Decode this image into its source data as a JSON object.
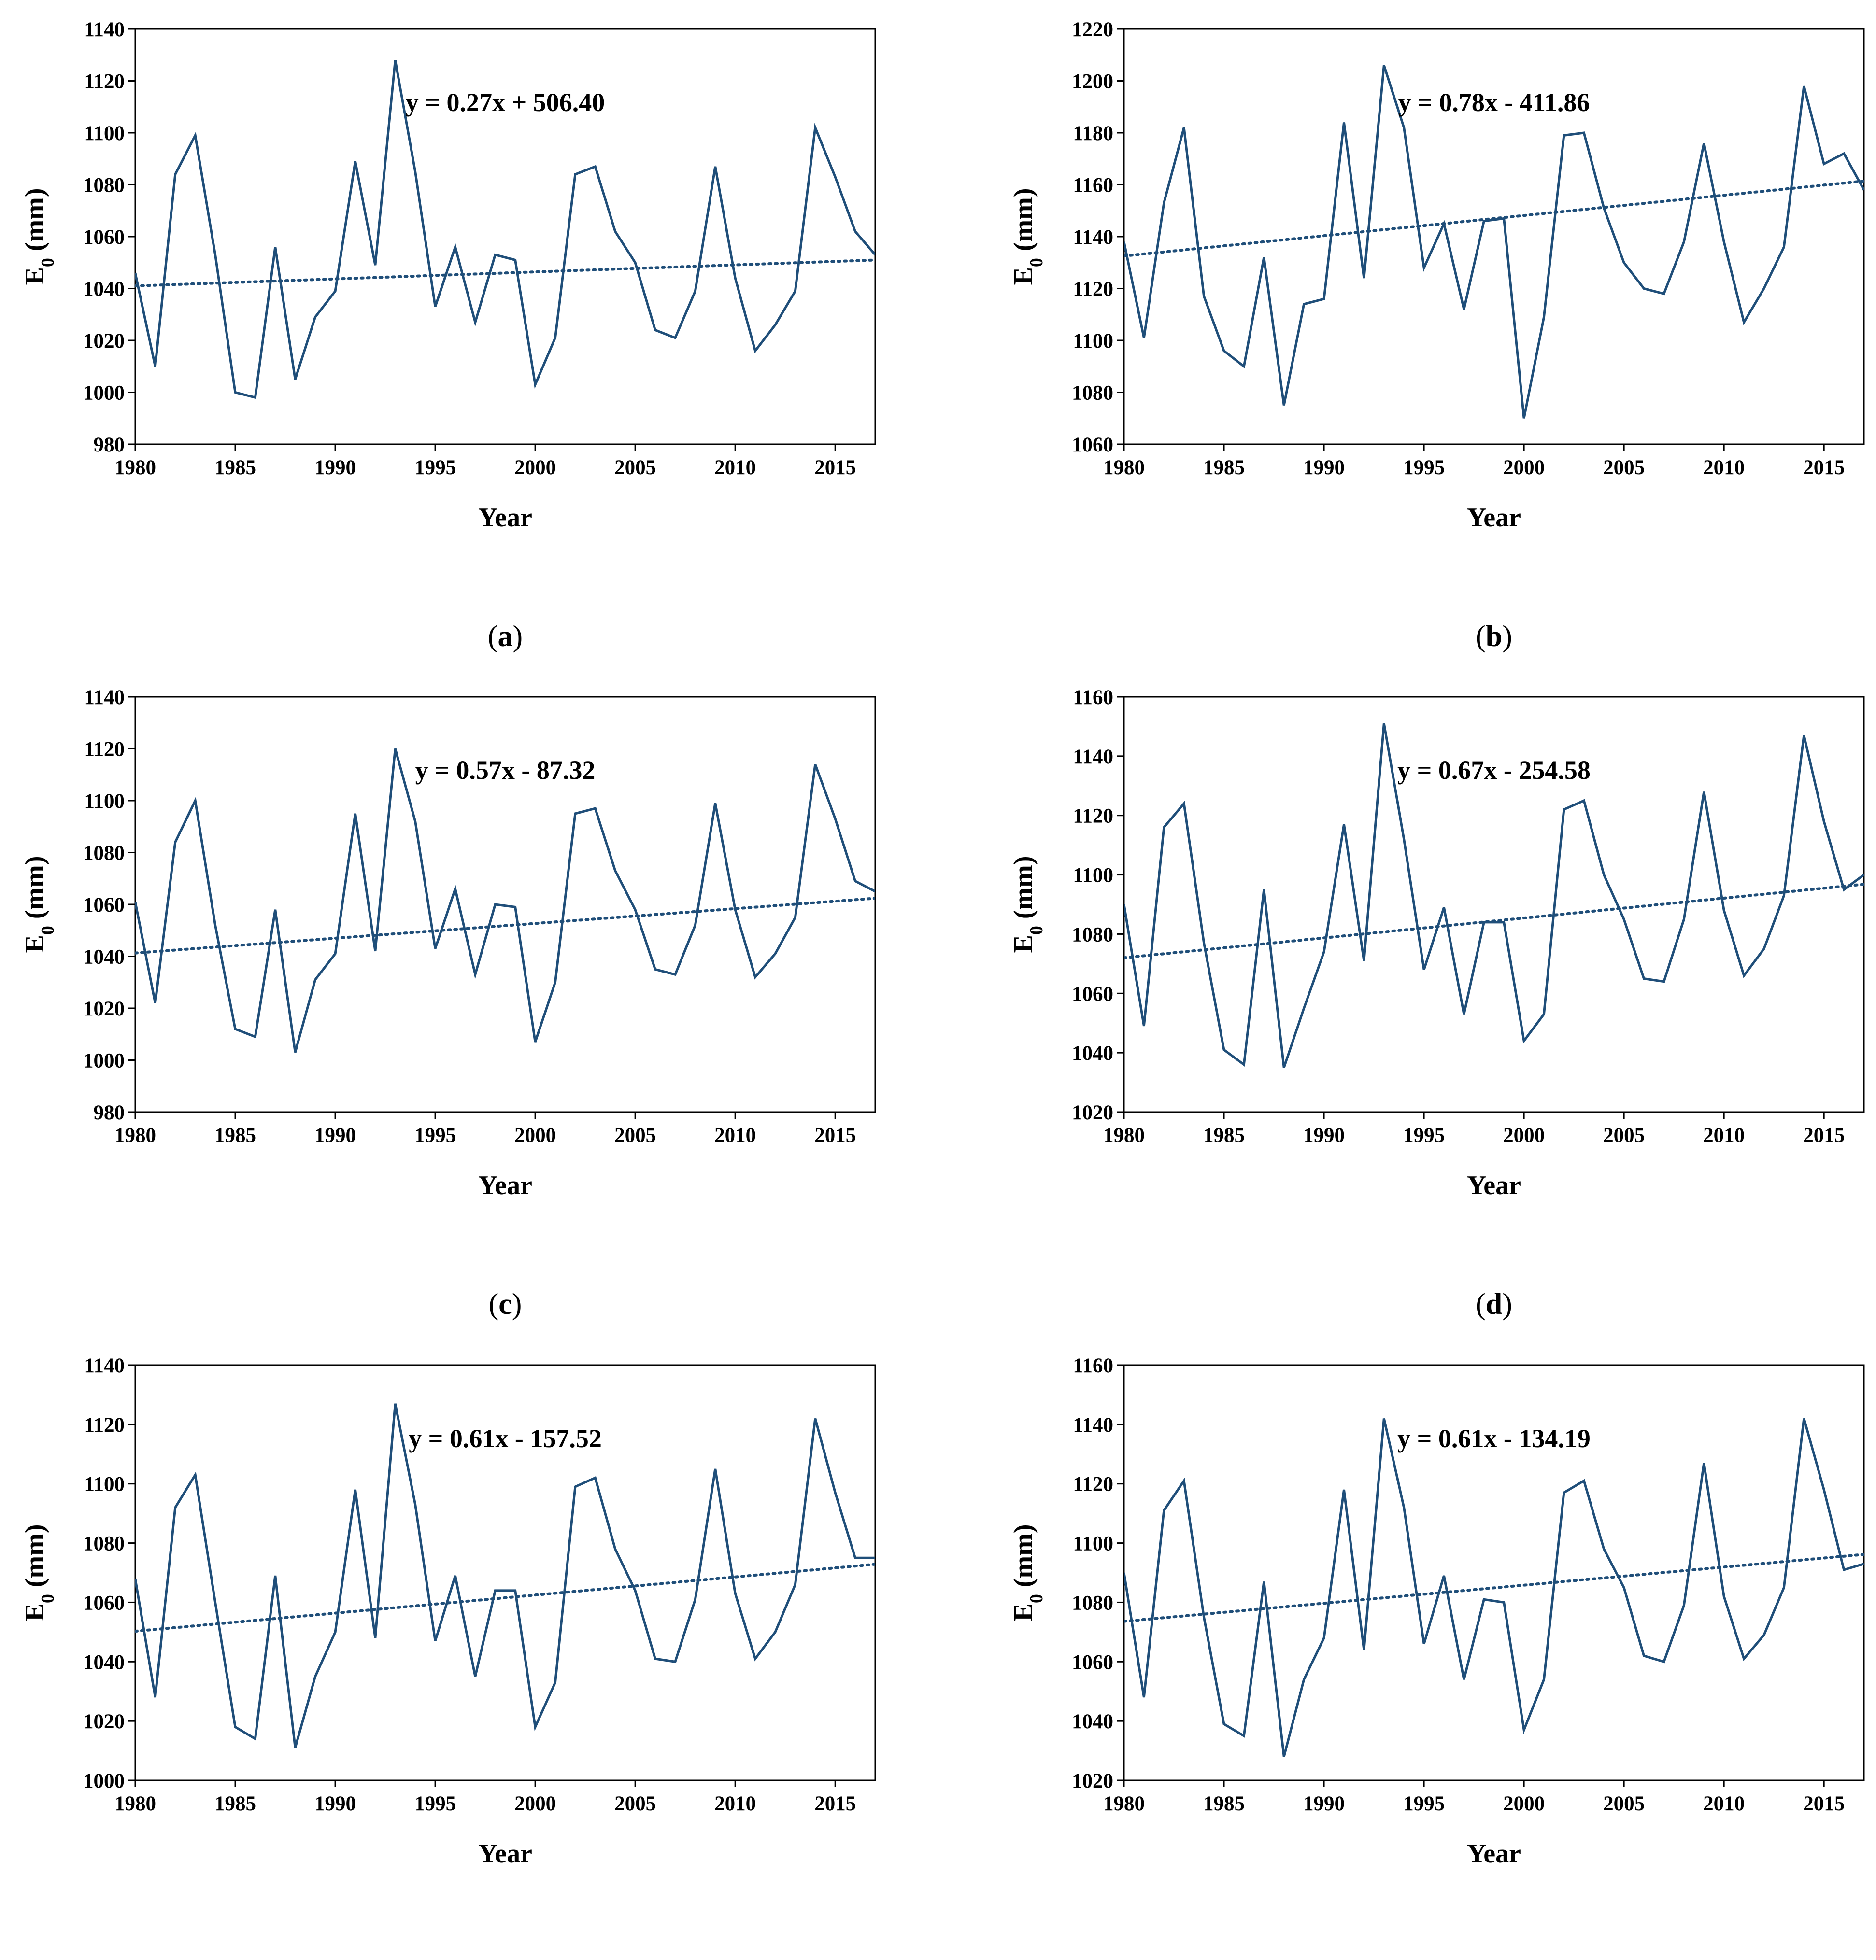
{
  "style": {
    "line_color": "#1f4e79",
    "trend_color": "#1f4e79"
  },
  "chart_data": [
    {
      "type": "line",
      "panel_label": "a",
      "xlabel": "Year",
      "ylabel": "E0 (mm)",
      "xlim": [
        1980,
        2017
      ],
      "ylim": [
        980,
        1140
      ],
      "xticks": [
        1980,
        1985,
        1990,
        1995,
        2000,
        2005,
        2010,
        2015
      ],
      "yticks": [
        980,
        1000,
        1020,
        1040,
        1060,
        1080,
        1100,
        1120,
        1140
      ],
      "equation": "y = 0.27x + 506.40",
      "trend": {
        "slope": 0.27,
        "intercept": 506.4,
        "style": "dotted"
      },
      "x": [
        1980,
        1981,
        1982,
        1983,
        1984,
        1985,
        1986,
        1987,
        1988,
        1989,
        1990,
        1991,
        1992,
        1993,
        1994,
        1995,
        1996,
        1997,
        1998,
        1999,
        2000,
        2001,
        2002,
        2003,
        2004,
        2005,
        2006,
        2007,
        2008,
        2009,
        2010,
        2011,
        2012,
        2013,
        2014,
        2015,
        2016,
        2017
      ],
      "y": [
        1046,
        1010,
        1084,
        1099,
        1053,
        1000,
        998,
        1056,
        1005,
        1029,
        1039,
        1089,
        1049,
        1128,
        1085,
        1033,
        1056,
        1027,
        1053,
        1051,
        1003,
        1021,
        1084,
        1087,
        1062,
        1050,
        1024,
        1021,
        1039,
        1087,
        1044,
        1016,
        1026,
        1039,
        1102,
        1083,
        1062,
        1053
      ]
    },
    {
      "type": "line",
      "panel_label": "b",
      "xlabel": "Year",
      "ylabel": "E0 (mm)",
      "xlim": [
        1980,
        2017
      ],
      "ylim": [
        1060,
        1220
      ],
      "xticks": [
        1980,
        1985,
        1990,
        1995,
        2000,
        2005,
        2010,
        2015
      ],
      "yticks": [
        1060,
        1080,
        1100,
        1120,
        1140,
        1160,
        1180,
        1200,
        1220
      ],
      "equation": "y = 0.78x - 411.86",
      "trend": {
        "slope": 0.78,
        "intercept": -411.86,
        "style": "dotted"
      },
      "x": [
        1980,
        1981,
        1982,
        1983,
        1984,
        1985,
        1986,
        1987,
        1988,
        1989,
        1990,
        1991,
        1992,
        1993,
        1994,
        1995,
        1996,
        1997,
        1998,
        1999,
        2000,
        2001,
        2002,
        2003,
        2004,
        2005,
        2006,
        2007,
        2008,
        2009,
        2010,
        2011,
        2012,
        2013,
        2014,
        2015,
        2016,
        2017
      ],
      "y": [
        1138,
        1101,
        1153,
        1182,
        1117,
        1096,
        1090,
        1132,
        1075,
        1114,
        1116,
        1184,
        1124,
        1206,
        1182,
        1128,
        1145,
        1112,
        1146,
        1147,
        1070,
        1109,
        1179,
        1180,
        1151,
        1130,
        1120,
        1118,
        1138,
        1176,
        1138,
        1107,
        1120,
        1136,
        1198,
        1168,
        1172,
        1158
      ]
    },
    {
      "type": "line",
      "panel_label": "c",
      "xlabel": "Year",
      "ylabel": "E0 (mm)",
      "xlim": [
        1980,
        2017
      ],
      "ylim": [
        980,
        1140
      ],
      "xticks": [
        1980,
        1985,
        1990,
        1995,
        2000,
        2005,
        2010,
        2015
      ],
      "yticks": [
        980,
        1000,
        1020,
        1040,
        1060,
        1080,
        1100,
        1120,
        1140
      ],
      "equation": "y = 0.57x - 87.32",
      "trend": {
        "slope": 0.57,
        "intercept": -87.32,
        "style": "dotted"
      },
      "x": [
        1980,
        1981,
        1982,
        1983,
        1984,
        1985,
        1986,
        1987,
        1988,
        1989,
        1990,
        1991,
        1992,
        1993,
        1994,
        1995,
        1996,
        1997,
        1998,
        1999,
        2000,
        2001,
        2002,
        2003,
        2004,
        2005,
        2006,
        2007,
        2008,
        2009,
        2010,
        2011,
        2012,
        2013,
        2014,
        2015,
        2016,
        2017
      ],
      "y": [
        1061,
        1022,
        1084,
        1100,
        1052,
        1012,
        1009,
        1058,
        1003,
        1031,
        1041,
        1095,
        1042,
        1120,
        1092,
        1043,
        1066,
        1033,
        1060,
        1059,
        1007,
        1030,
        1095,
        1097,
        1073,
        1058,
        1035,
        1033,
        1052,
        1099,
        1058,
        1032,
        1041,
        1055,
        1114,
        1093,
        1069,
        1065
      ]
    },
    {
      "type": "line",
      "panel_label": "d",
      "xlabel": "Year",
      "ylabel": "E0 (mm)",
      "xlim": [
        1980,
        2017
      ],
      "ylim": [
        1020,
        1160
      ],
      "xticks": [
        1980,
        1985,
        1990,
        1995,
        2000,
        2005,
        2010,
        2015
      ],
      "yticks": [
        1020,
        1040,
        1060,
        1080,
        1100,
        1120,
        1140,
        1160
      ],
      "equation": "y = 0.67x - 254.58",
      "trend": {
        "slope": 0.67,
        "intercept": -254.58,
        "style": "dotted"
      },
      "x": [
        1980,
        1981,
        1982,
        1983,
        1984,
        1985,
        1986,
        1987,
        1988,
        1989,
        1990,
        1991,
        1992,
        1993,
        1994,
        1995,
        1996,
        1997,
        1998,
        1999,
        2000,
        2001,
        2002,
        2003,
        2004,
        2005,
        2006,
        2007,
        2008,
        2009,
        2010,
        2011,
        2012,
        2013,
        2014,
        2015,
        2016,
        2017
      ],
      "y": [
        1090,
        1049,
        1116,
        1124,
        1077,
        1041,
        1036,
        1095,
        1035,
        1055,
        1074,
        1117,
        1071,
        1151,
        1112,
        1068,
        1089,
        1053,
        1084,
        1084,
        1044,
        1053,
        1122,
        1125,
        1100,
        1085,
        1065,
        1064,
        1085,
        1128,
        1088,
        1066,
        1075,
        1093,
        1147,
        1118,
        1095,
        1100
      ]
    },
    {
      "type": "line",
      "panel_label": "e",
      "xlabel": "Year",
      "ylabel": "E0 (mm)",
      "xlim": [
        1980,
        2017
      ],
      "ylim": [
        1000,
        1140
      ],
      "xticks": [
        1980,
        1985,
        1990,
        1995,
        2000,
        2005,
        2010,
        2015
      ],
      "yticks": [
        1000,
        1020,
        1040,
        1060,
        1080,
        1100,
        1120,
        1140
      ],
      "equation": "y = 0.61x - 157.52",
      "trend": {
        "slope": 0.61,
        "intercept": -157.52,
        "style": "dotted"
      },
      "x": [
        1980,
        1981,
        1982,
        1983,
        1984,
        1985,
        1986,
        1987,
        1988,
        1989,
        1990,
        1991,
        1992,
        1993,
        1994,
        1995,
        1996,
        1997,
        1998,
        1999,
        2000,
        2001,
        2002,
        2003,
        2004,
        2005,
        2006,
        2007,
        2008,
        2009,
        2010,
        2011,
        2012,
        2013,
        2014,
        2015,
        2016,
        2017
      ],
      "y": [
        1068,
        1028,
        1092,
        1103,
        1060,
        1018,
        1014,
        1069,
        1011,
        1035,
        1050,
        1098,
        1048,
        1127,
        1093,
        1047,
        1069,
        1035,
        1064,
        1064,
        1018,
        1033,
        1099,
        1102,
        1078,
        1064,
        1041,
        1040,
        1061,
        1105,
        1063,
        1041,
        1050,
        1066,
        1122,
        1097,
        1075,
        1075
      ]
    },
    {
      "type": "line",
      "panel_label": "f",
      "xlabel": "Year",
      "ylabel": "E0 (mm)",
      "xlim": [
        1980,
        2017
      ],
      "ylim": [
        1020,
        1160
      ],
      "xticks": [
        1980,
        1985,
        1990,
        1995,
        2000,
        2005,
        2010,
        2015
      ],
      "yticks": [
        1020,
        1040,
        1060,
        1080,
        1100,
        1120,
        1140,
        1160
      ],
      "equation": "y = 0.61x - 134.19",
      "trend": {
        "slope": 0.61,
        "intercept": -134.19,
        "style": "dotted"
      },
      "x": [
        1980,
        1981,
        1982,
        1983,
        1984,
        1985,
        1986,
        1987,
        1988,
        1989,
        1990,
        1991,
        1992,
        1993,
        1994,
        1995,
        1996,
        1997,
        1998,
        1999,
        2000,
        2001,
        2002,
        2003,
        2004,
        2005,
        2006,
        2007,
        2008,
        2009,
        2010,
        2011,
        2012,
        2013,
        2014,
        2015,
        2016,
        2017
      ],
      "y": [
        1090,
        1048,
        1111,
        1121,
        1075,
        1039,
        1035,
        1087,
        1028,
        1054,
        1068,
        1118,
        1064,
        1142,
        1112,
        1066,
        1089,
        1054,
        1081,
        1080,
        1037,
        1054,
        1117,
        1121,
        1098,
        1085,
        1062,
        1060,
        1079,
        1127,
        1082,
        1061,
        1069,
        1085,
        1142,
        1118,
        1091,
        1093
      ]
    }
  ]
}
